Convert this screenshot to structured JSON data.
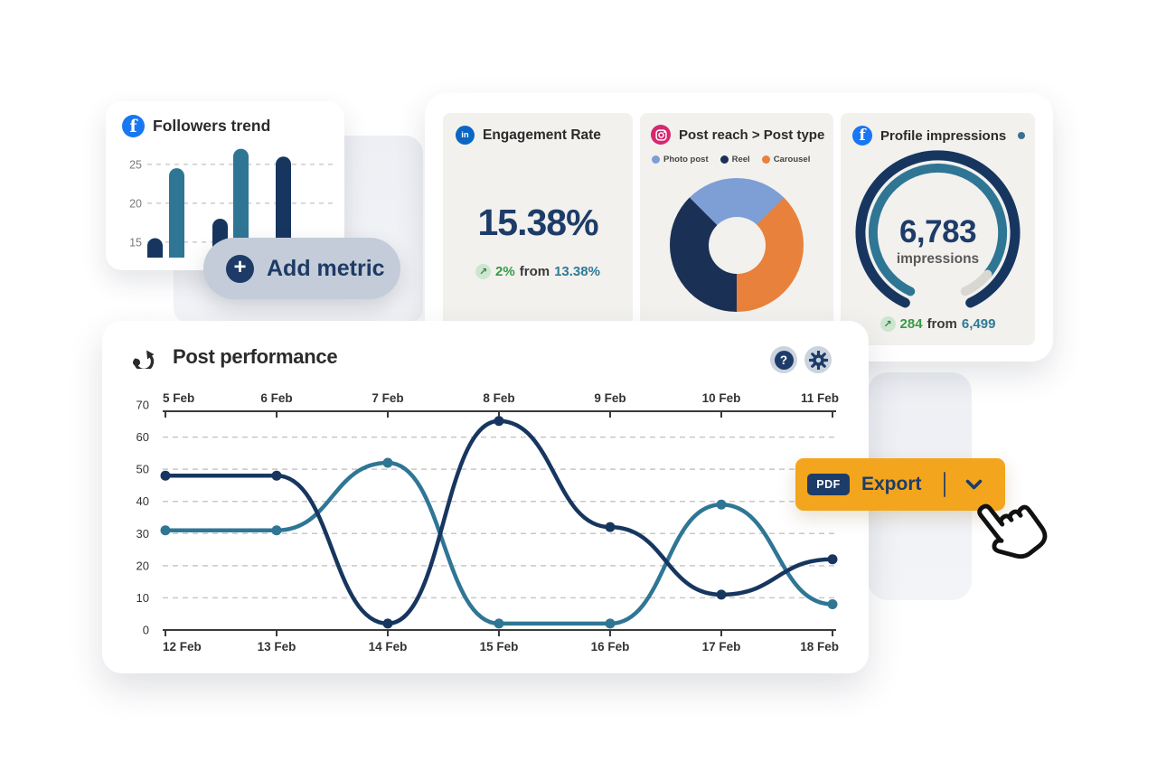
{
  "colors": {
    "navy": "#17365f",
    "teal": "#2f7695",
    "light_blue": "#7e9ed6",
    "orange": "#e8813c",
    "donut_navy": "#1b3055",
    "green": "#379a47",
    "teal_text": "#2e7a96",
    "export_orange": "#f3a51d",
    "pill_gray": "#c3ccd8",
    "card_bg": "#f2f1ee",
    "grid": "#c8c8c8",
    "axis": "#3a3a3a",
    "facebook_blue": "#1877f2",
    "linkedin_blue": "#0a66c2",
    "instagram_pink": "#d6276f"
  },
  "followers_card": {
    "title": "Followers trend",
    "chart_data": {
      "type": "bar",
      "yticks": [
        25,
        20,
        15
      ],
      "values": [
        15.5,
        24.5,
        18,
        27,
        26
      ],
      "bar_colors": [
        "navy",
        "teal",
        "navy",
        "teal",
        "navy"
      ],
      "baseline_value": 13,
      "grid": "dashed-horizontal"
    }
  },
  "add_metric": {
    "label": "Add metric",
    "plus": "+"
  },
  "engagement": {
    "title": "Engagement Rate",
    "value": "15.38%",
    "change": {
      "arrow": "↗",
      "delta": "2%",
      "from_label": "from",
      "previous": "13.38%"
    }
  },
  "post_reach": {
    "title": "Post reach > Post type",
    "chart_data": {
      "type": "pie",
      "donut": true,
      "rotation_deg": -45,
      "conic_order": [
        0,
        2,
        1
      ],
      "slices": [
        {
          "label": "Photo post",
          "value": 25,
          "color": "#7e9ed6"
        },
        {
          "label": "Reel",
          "value": 37.5,
          "color": "#1b3055"
        },
        {
          "label": "Carousel",
          "value": 37.5,
          "color": "#e8813c"
        }
      ]
    }
  },
  "impressions": {
    "title": "Profile impressions",
    "value": "6,783",
    "unit": "impressions",
    "change": {
      "arrow": "↗",
      "delta": "284",
      "from_label": "from",
      "previous": "6,499"
    },
    "chart_data": {
      "type": "gauge",
      "value": 6783,
      "previous": 6499
    }
  },
  "post_performance": {
    "title": "Post performance",
    "chart_data": {
      "type": "line",
      "ylim": [
        0,
        70
      ],
      "yticks": [
        70,
        60,
        50,
        40,
        30,
        20,
        10,
        0
      ],
      "x_top_labels": [
        "5 Feb",
        "6 Feb",
        "7 Feb",
        "8 Feb",
        "9 Feb",
        "10 Feb",
        "11 Feb"
      ],
      "x_bottom_labels": [
        "12 Feb",
        "13 Feb",
        "14 Feb",
        "15 Feb",
        "16 Feb",
        "17 Feb",
        "18 Feb"
      ],
      "grid": "dashed-horizontal",
      "legend_position": "none",
      "series": [
        {
          "name": "teal-series",
          "color": "#2f7695",
          "values": [
            31,
            31,
            52,
            2,
            2,
            39,
            8
          ]
        },
        {
          "name": "navy-series",
          "color": "#17365f",
          "values": [
            48,
            48,
            2,
            65,
            32,
            11,
            22
          ]
        }
      ]
    }
  },
  "export_button": {
    "badge": "PDF",
    "label": "Export"
  }
}
